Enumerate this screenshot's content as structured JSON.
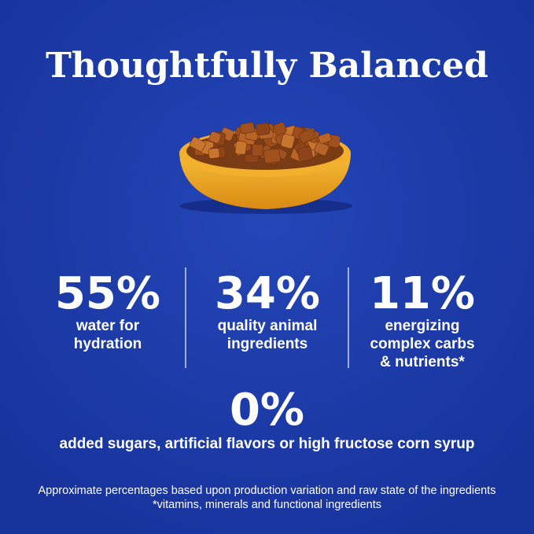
{
  "title": "Thoughtfully Balanced",
  "stats": [
    {
      "value": "55%",
      "lines": [
        "water for",
        "hydration"
      ]
    },
    {
      "value": "34%",
      "lines": [
        "quality animal",
        "ingredients"
      ]
    },
    {
      "value": "11%",
      "lines": [
        "energizing",
        "complex carbs",
        "& nutrients*"
      ]
    }
  ],
  "highlight": {
    "value": "0%",
    "text": "added sugars, artificial flavors or high fructose corn syrup"
  },
  "footnotes": [
    "Approximate percentages based upon production variation and raw state of the ingredients",
    "*vitamins, minerals and functional ingredients"
  ]
}
